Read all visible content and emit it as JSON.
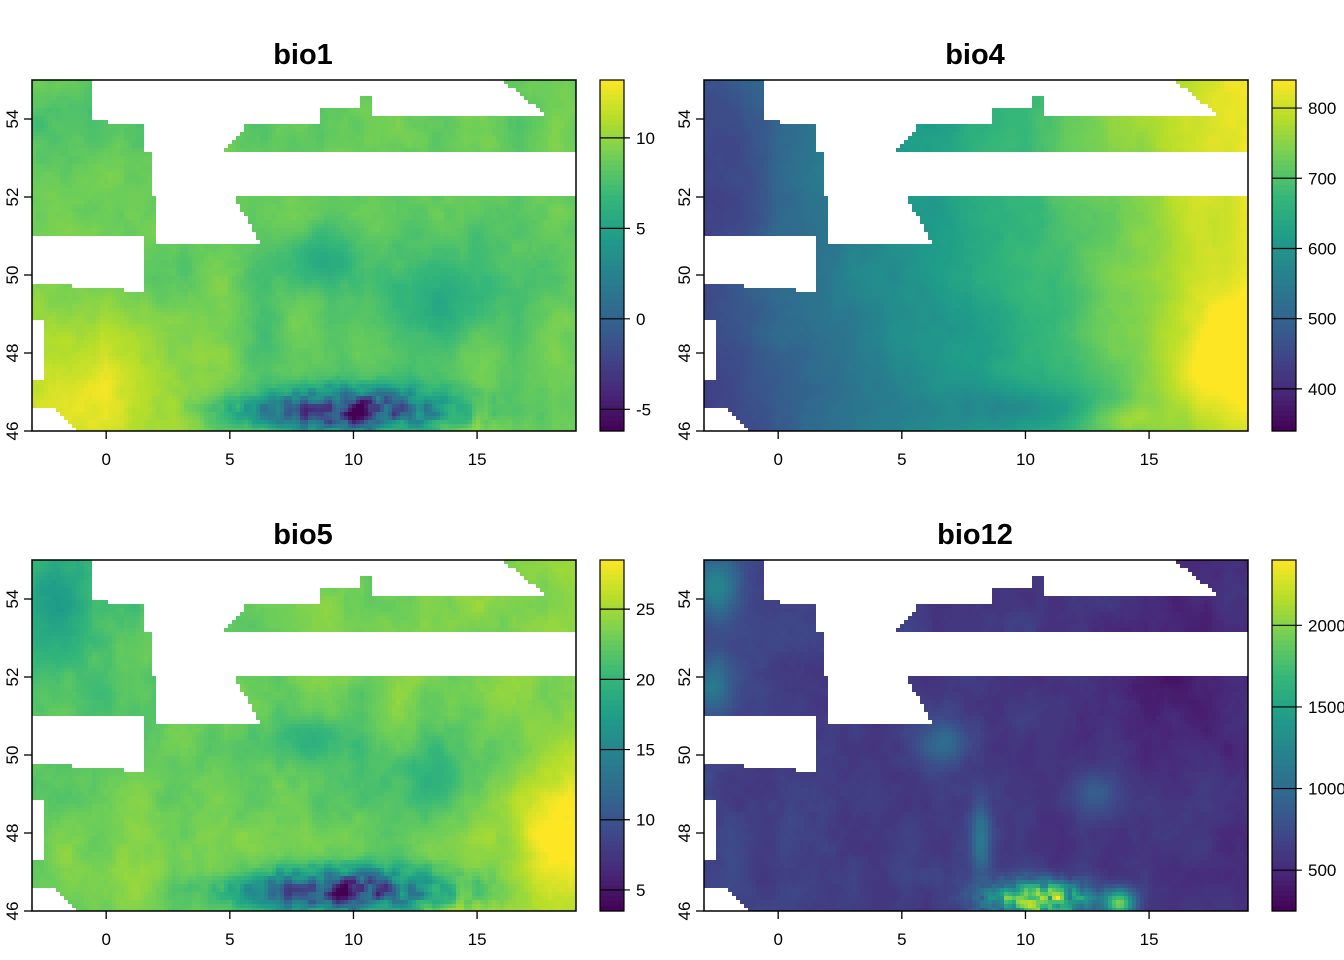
{
  "figure": {
    "panels": [
      {
        "id": "bio1",
        "title": "bio1",
        "x_ticks": [
          "0",
          "5",
          "10",
          "15"
        ],
        "y_ticks": [
          "46",
          "48",
          "50",
          "52",
          "54"
        ],
        "legend_ticks": [
          "10",
          "5",
          "0",
          "-5"
        ]
      },
      {
        "id": "bio4",
        "title": "bio4",
        "x_ticks": [
          "0",
          "5",
          "10",
          "15"
        ],
        "y_ticks": [
          "46",
          "48",
          "50",
          "52",
          "54"
        ],
        "legend_ticks": [
          "800",
          "700",
          "600",
          "500",
          "400"
        ]
      },
      {
        "id": "bio5",
        "title": "bio5",
        "x_ticks": [
          "0",
          "5",
          "10",
          "15"
        ],
        "y_ticks": [
          "46",
          "48",
          "50",
          "52",
          "54"
        ],
        "legend_ticks": [
          "25",
          "20",
          "15",
          "10",
          "5"
        ]
      },
      {
        "id": "bio12",
        "title": "bio12",
        "x_ticks": [
          "0",
          "5",
          "10",
          "15"
        ],
        "y_ticks": [
          "46",
          "48",
          "50",
          "52",
          "54"
        ],
        "legend_ticks": [
          "2000",
          "1500",
          "1000",
          "500"
        ]
      }
    ]
  },
  "colors": {
    "viridis": [
      "#440154",
      "#482878",
      "#3e4989",
      "#31688e",
      "#26828e",
      "#1f9e89",
      "#35b779",
      "#6ece58",
      "#b5de2b",
      "#fde725"
    ],
    "background": "#ffffff",
    "no_data": "#ffffff"
  },
  "chart_data": [
    {
      "type": "heatmap",
      "title": "bio1",
      "xlim": [
        -3,
        19
      ],
      "ylim": [
        46,
        55
      ],
      "x_ticks": [
        0,
        5,
        10,
        15
      ],
      "y_ticks": [
        46,
        48,
        50,
        52,
        54
      ],
      "legend": {
        "position": "right",
        "range": [
          -6.2,
          13.2
        ],
        "ticks": [
          10,
          5,
          0,
          -5
        ]
      },
      "value_pattern": {
        "base": 8.5,
        "south_west_high": 12.5,
        "alps_low": -5.5,
        "highlands_low": 4.5,
        "north_west_low": 7.0
      }
    },
    {
      "type": "heatmap",
      "title": "bio4",
      "xlim": [
        -3,
        19
      ],
      "ylim": [
        46,
        55
      ],
      "x_ticks": [
        0,
        5,
        10,
        15
      ],
      "y_ticks": [
        46,
        48,
        50,
        52,
        54
      ],
      "legend": {
        "position": "right",
        "range": [
          340,
          840
        ],
        "ticks": [
          800,
          700,
          600,
          500,
          400
        ]
      },
      "value_pattern": {
        "west_low": 420,
        "east_high": 820,
        "gradient": "west-to-east"
      }
    },
    {
      "type": "heatmap",
      "title": "bio5",
      "xlim": [
        -3,
        19
      ],
      "ylim": [
        46,
        55
      ],
      "x_ticks": [
        0,
        5,
        10,
        15
      ],
      "y_ticks": [
        46,
        48,
        50,
        52,
        54
      ],
      "legend": {
        "position": "right",
        "range": [
          3.5,
          28.5
        ],
        "ticks": [
          25,
          20,
          15,
          10,
          5
        ]
      },
      "value_pattern": {
        "base": 22,
        "south_east_high": 27.5,
        "alps_low": 4.5,
        "north_west_low": 16
      }
    },
    {
      "type": "heatmap",
      "title": "bio12",
      "xlim": [
        -3,
        19
      ],
      "ylim": [
        46,
        55
      ],
      "x_ticks": [
        0,
        5,
        10,
        15
      ],
      "y_ticks": [
        46,
        48,
        50,
        52,
        54
      ],
      "legend": {
        "position": "right",
        "range": [
          250,
          2400
        ],
        "ticks": [
          2000,
          1500,
          1000,
          500
        ]
      },
      "value_pattern": {
        "base": 700,
        "alps_high": 2300,
        "uplands_high": 1300,
        "east_low": 550
      }
    }
  ]
}
